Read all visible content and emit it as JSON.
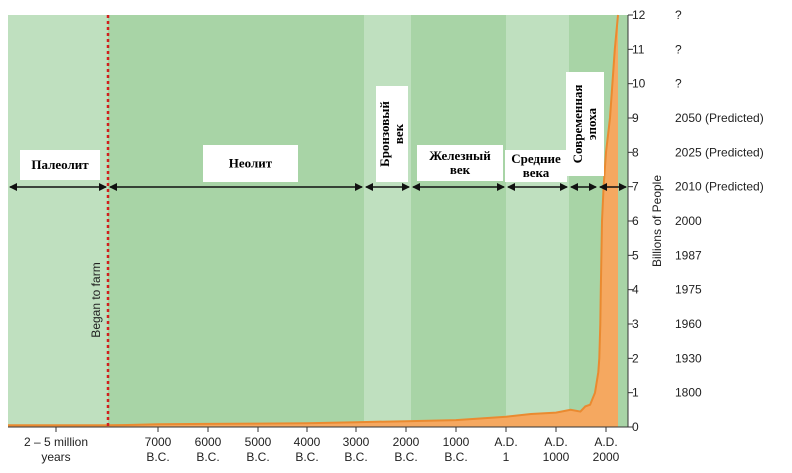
{
  "chart_data": {
    "type": "area",
    "title": "",
    "xlabel": "",
    "ylabel": "Billions of People",
    "ylim": [
      0,
      12
    ],
    "y_ticks": [
      0,
      1,
      2,
      3,
      4,
      5,
      6,
      7,
      8,
      9,
      10,
      11,
      12
    ],
    "year_labels": [
      {
        "value": 12,
        "label": "?"
      },
      {
        "value": 11,
        "label": "?"
      },
      {
        "value": 10,
        "label": "?"
      },
      {
        "value": 9,
        "label": "2050 (Predicted)"
      },
      {
        "value": 8,
        "label": "2025 (Predicted)"
      },
      {
        "value": 7,
        "label": "2010 (Predicted)"
      },
      {
        "value": 6,
        "label": "2000"
      },
      {
        "value": 5,
        "label": "1987"
      },
      {
        "value": 4,
        "label": "1975"
      },
      {
        "value": 3,
        "label": "1960"
      },
      {
        "value": 2,
        "label": "1930"
      },
      {
        "value": 1,
        "label": "1800"
      }
    ],
    "x_ticks": [
      {
        "line1": "2 – 5 million",
        "line2": "years"
      },
      {
        "line1": "7000",
        "line2": "B.C."
      },
      {
        "line1": "6000",
        "line2": "B.C."
      },
      {
        "line1": "5000",
        "line2": "B.C."
      },
      {
        "line1": "4000",
        "line2": "B.C."
      },
      {
        "line1": "3000",
        "line2": "B.C."
      },
      {
        "line1": "2000",
        "line2": "B.C."
      },
      {
        "line1": "1000",
        "line2": "B.C."
      },
      {
        "line1": "A.D.",
        "line2": "1"
      },
      {
        "line1": "A.D.",
        "line2": "1000"
      },
      {
        "line1": "A.D.",
        "line2": "2000"
      }
    ],
    "annotation": "Began to farm",
    "eras": [
      {
        "label": "Палеолит",
        "color": "#bfe0bf"
      },
      {
        "label": "Неолит",
        "color": "#a8d4a6"
      },
      {
        "label": "Бронзовый век",
        "color": "#bfe0bf"
      },
      {
        "label": "Железный век",
        "color": "#a8d4a6"
      },
      {
        "label": "Средние века",
        "color": "#bfe0bf"
      },
      {
        "label": "Современная эпоха",
        "color": "#a8d4a6"
      }
    ],
    "series": [
      {
        "color": "#f5a860",
        "points": [
          [
            -9000,
            0.05
          ],
          [
            -8000,
            0.06
          ],
          [
            -7000,
            0.08
          ],
          [
            -6000,
            0.09
          ],
          [
            -5000,
            0.1
          ],
          [
            -4000,
            0.11
          ],
          [
            -3000,
            0.14
          ],
          [
            -2000,
            0.17
          ],
          [
            -1000,
            0.2
          ],
          [
            1,
            0.3
          ],
          [
            500,
            0.38
          ],
          [
            1000,
            0.42
          ],
          [
            1300,
            0.5
          ],
          [
            1500,
            0.45
          ],
          [
            1600,
            0.6
          ],
          [
            1700,
            0.65
          ],
          [
            1800,
            1
          ],
          [
            1900,
            1.6
          ],
          [
            1930,
            2
          ],
          [
            1960,
            3
          ],
          [
            1975,
            4
          ],
          [
            1987,
            5
          ],
          [
            2000,
            6
          ],
          [
            2010,
            7
          ],
          [
            2025,
            8
          ],
          [
            2050,
            9
          ],
          [
            2080,
            11
          ],
          [
            2100,
            12
          ]
        ]
      }
    ]
  }
}
